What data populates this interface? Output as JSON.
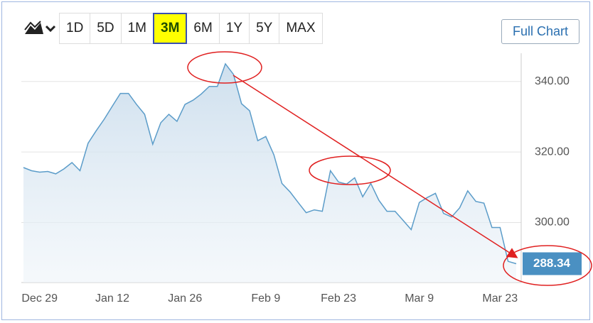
{
  "toolbar": {
    "ranges": [
      "1D",
      "5D",
      "1M",
      "3M",
      "6M",
      "1Y",
      "5Y",
      "MAX"
    ],
    "active_index": 3,
    "full_chart": "Full Chart"
  },
  "chart_data": {
    "type": "line",
    "categories": [
      null,
      null,
      "Dec 29",
      null,
      null,
      null,
      null,
      null,
      null,
      null,
      null,
      "Jan 12",
      null,
      null,
      null,
      null,
      null,
      null,
      null,
      null,
      "Jan 26",
      null,
      null,
      null,
      null,
      null,
      null,
      null,
      null,
      null,
      "Feb 9",
      null,
      null,
      null,
      null,
      null,
      null,
      null,
      null,
      "Feb 23",
      null,
      null,
      null,
      null,
      null,
      null,
      null,
      null,
      null,
      "Mar 9",
      null,
      null,
      null,
      null,
      null,
      null,
      null,
      null,
      null,
      "Mar 23",
      null,
      null
    ],
    "series": [
      {
        "color": "#5b9cc9",
        "values": [
          315.6,
          314.7,
          314.3,
          314.5,
          313.8,
          315.2,
          317,
          314.7,
          322.5,
          326,
          329.3,
          333,
          336.6,
          336.6,
          333.5,
          330.7,
          322.2,
          328.3,
          330.7,
          328.7,
          333.5,
          334.7,
          336.4,
          338.6,
          338.6,
          345,
          342,
          333.7,
          331.7,
          323.2,
          324.4,
          319.2,
          311.1,
          308.7,
          305.7,
          302.8,
          303.6,
          303.2,
          314.7,
          311.5,
          310.9,
          312.7,
          307.3,
          311.1,
          306.3,
          303.2,
          303.2,
          300.6,
          298,
          305.7,
          307.1,
          308.3,
          302.6,
          301.6,
          304.2,
          309,
          306,
          305.5,
          298.6,
          298.6,
          289,
          288.34
        ]
      }
    ],
    "ylim": [
      283,
      348
    ],
    "yticks": [
      {
        "value": 300,
        "label": "300.00"
      },
      {
        "value": 320,
        "label": "320.00"
      },
      {
        "value": 340,
        "label": "340.00"
      }
    ],
    "grid": true
  }
}
